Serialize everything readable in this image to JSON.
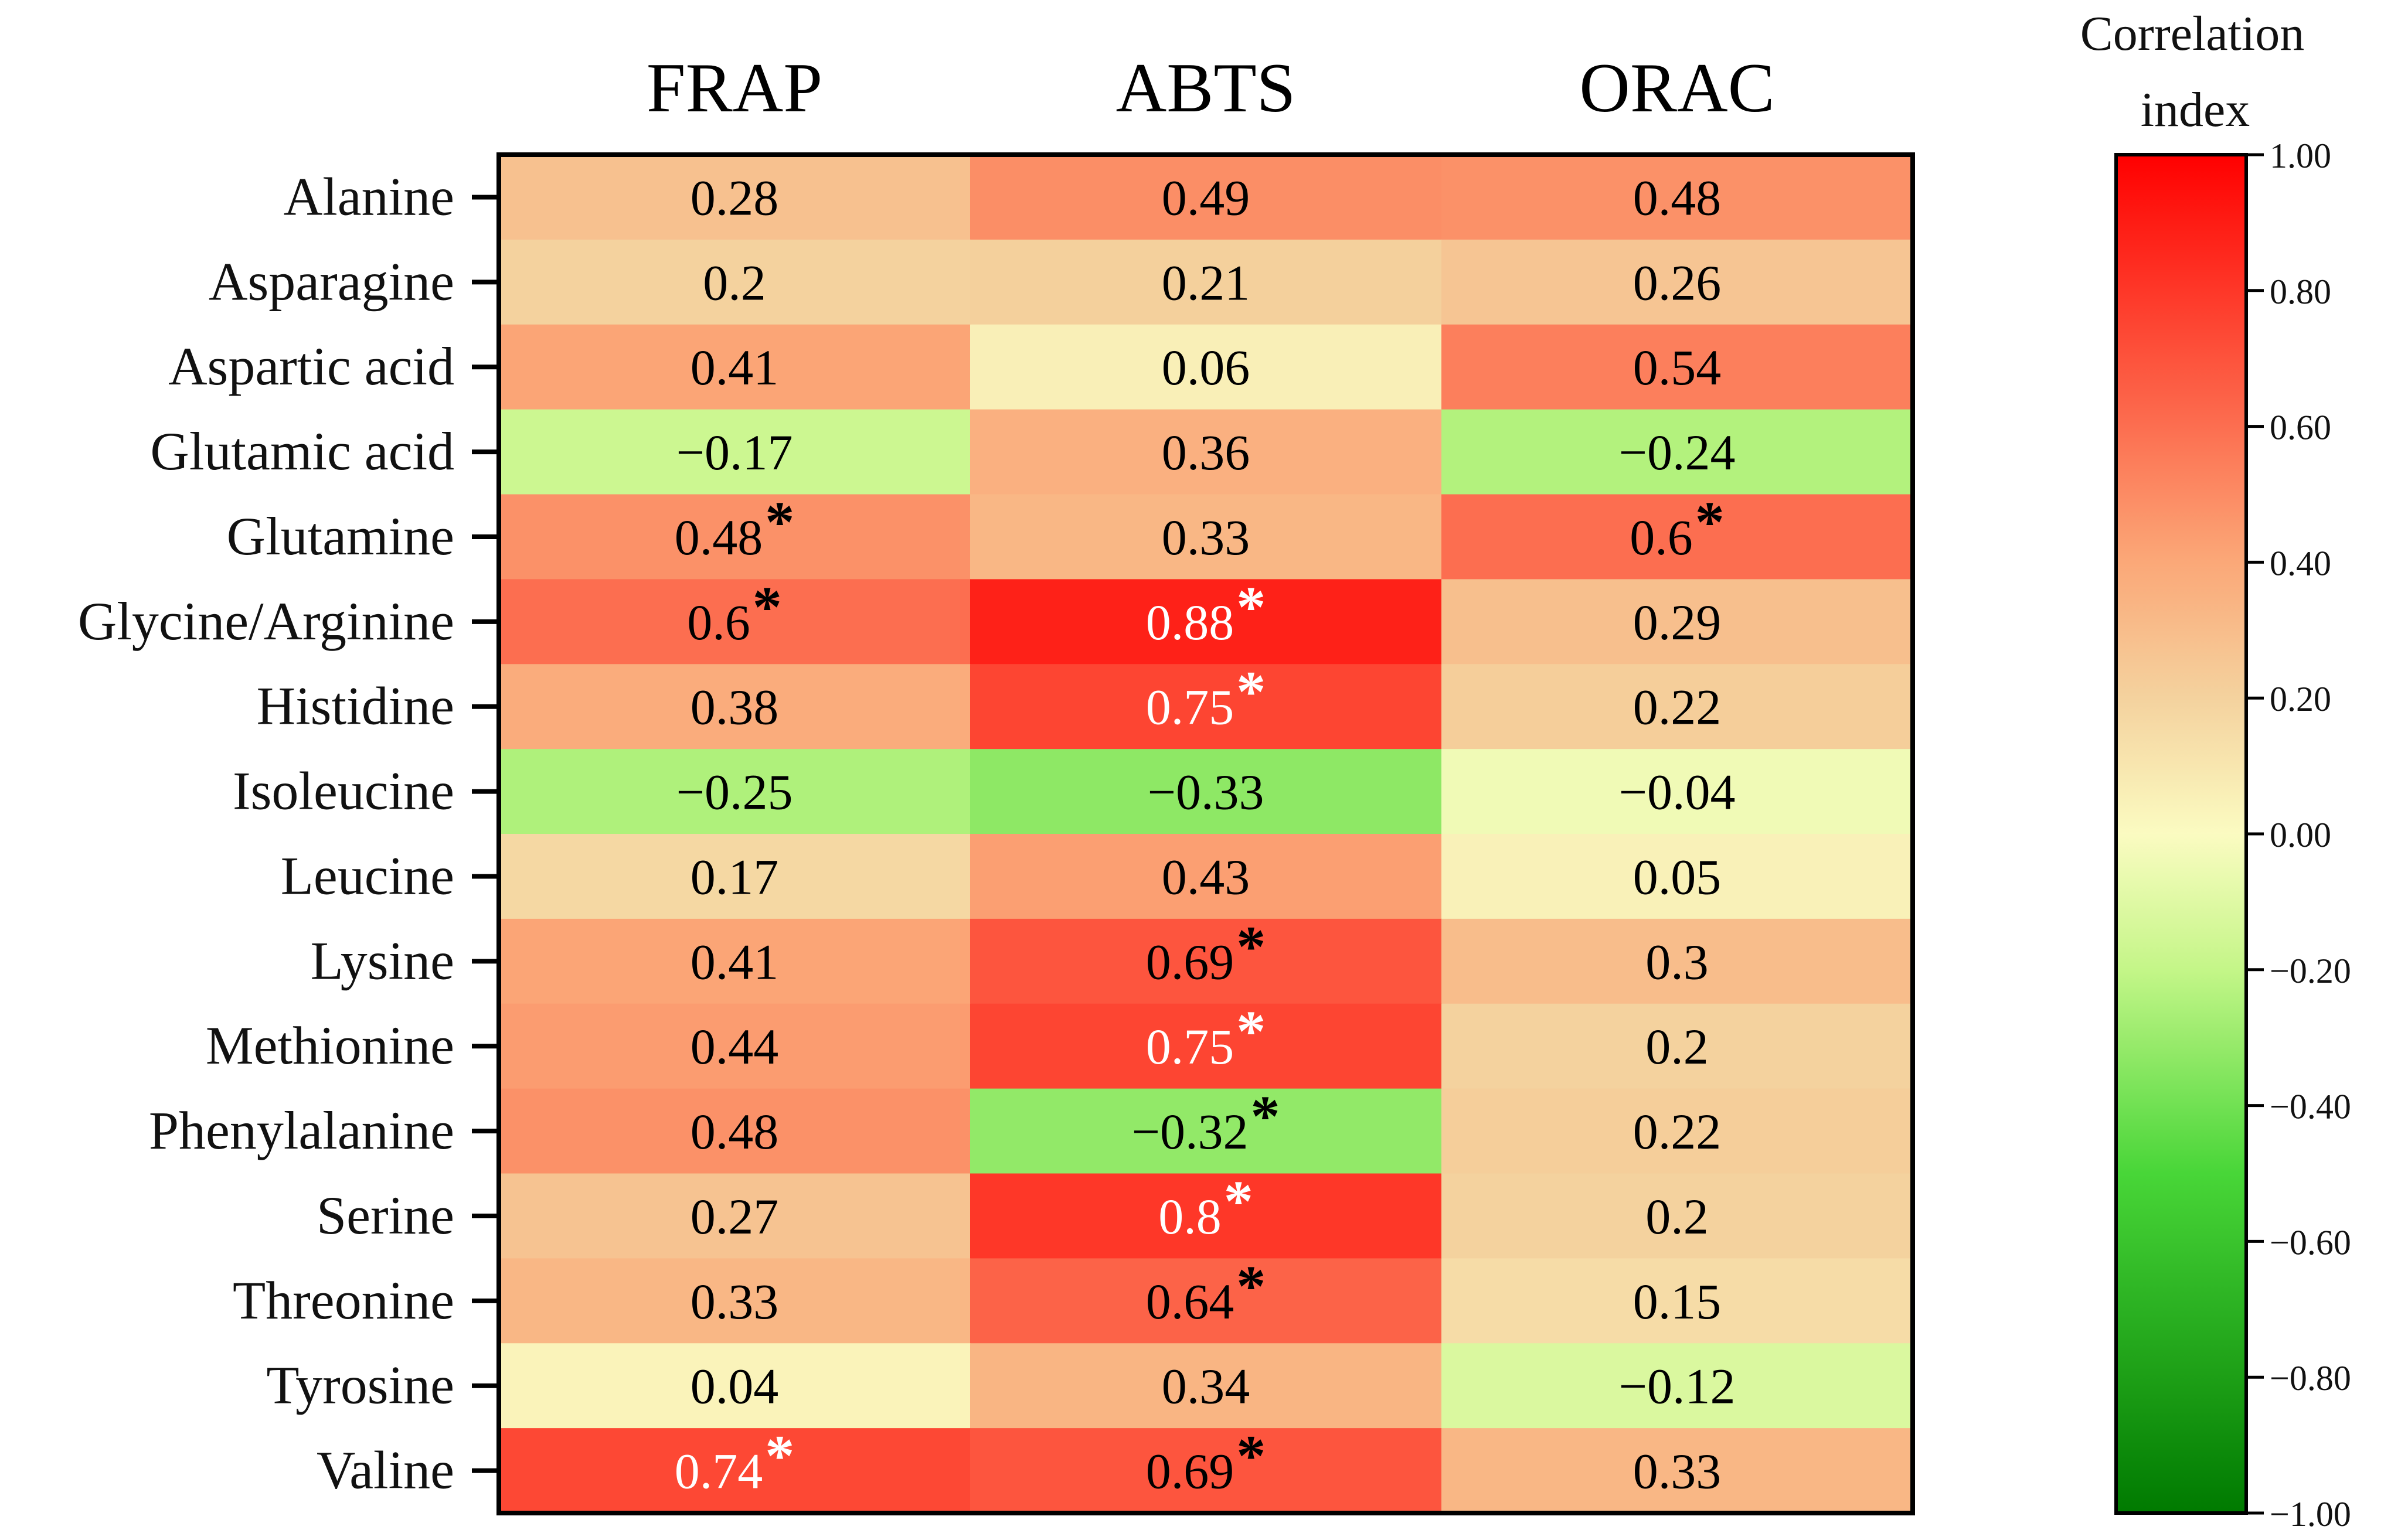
{
  "chart_data": {
    "type": "heatmap",
    "title": "",
    "columns": [
      "FRAP",
      "ABTS",
      "ORAC"
    ],
    "rows": [
      {
        "label": "Alanine",
        "values": [
          0.28,
          0.49,
          0.48
        ],
        "labels": [
          "0.28",
          "0.49",
          "0.48"
        ],
        "significant": [
          false,
          false,
          false
        ]
      },
      {
        "label": "Asparagine",
        "values": [
          0.2,
          0.21,
          0.26
        ],
        "labels": [
          "0.2",
          "0.21",
          "0.26"
        ],
        "significant": [
          false,
          false,
          false
        ]
      },
      {
        "label": "Aspartic acid",
        "values": [
          0.41,
          0.06,
          0.54
        ],
        "labels": [
          "0.41",
          "0.06",
          "0.54"
        ],
        "significant": [
          false,
          false,
          false
        ]
      },
      {
        "label": "Glutamic acid",
        "values": [
          -0.17,
          0.36,
          -0.24
        ],
        "labels": [
          "−0.17",
          "0.36",
          "−0.24"
        ],
        "significant": [
          false,
          false,
          false
        ]
      },
      {
        "label": "Glutamine",
        "values": [
          0.48,
          0.33,
          0.6
        ],
        "labels": [
          "0.48",
          "0.33",
          "0.6"
        ],
        "significant": [
          true,
          false,
          true
        ]
      },
      {
        "label": "Glycine/Arginine",
        "values": [
          0.6,
          0.88,
          0.29
        ],
        "labels": [
          "0.6",
          "0.88",
          "0.29"
        ],
        "significant": [
          true,
          true,
          false
        ]
      },
      {
        "label": "Histidine",
        "values": [
          0.38,
          0.75,
          0.22
        ],
        "labels": [
          "0.38",
          "0.75",
          "0.22"
        ],
        "significant": [
          false,
          true,
          false
        ]
      },
      {
        "label": "Isoleucine",
        "values": [
          -0.25,
          -0.33,
          -0.04
        ],
        "labels": [
          "−0.25",
          "−0.33",
          "−0.04"
        ],
        "significant": [
          false,
          false,
          false
        ]
      },
      {
        "label": "Leucine",
        "values": [
          0.17,
          0.43,
          0.05
        ],
        "labels": [
          "0.17",
          "0.43",
          "0.05"
        ],
        "significant": [
          false,
          false,
          false
        ]
      },
      {
        "label": "Lysine",
        "values": [
          0.41,
          0.69,
          0.3
        ],
        "labels": [
          "0.41",
          "0.69",
          "0.3"
        ],
        "significant": [
          false,
          true,
          false
        ]
      },
      {
        "label": "Methionine",
        "values": [
          0.44,
          0.75,
          0.2
        ],
        "labels": [
          "0.44",
          "0.75",
          "0.2"
        ],
        "significant": [
          false,
          true,
          false
        ]
      },
      {
        "label": "Phenylalanine",
        "values": [
          0.48,
          -0.32,
          0.22
        ],
        "labels": [
          "0.48",
          "−0.32",
          "0.22"
        ],
        "significant": [
          false,
          true,
          false
        ]
      },
      {
        "label": "Serine",
        "values": [
          0.27,
          0.8,
          0.2
        ],
        "labels": [
          "0.27",
          "0.8",
          "0.2"
        ],
        "significant": [
          false,
          true,
          false
        ]
      },
      {
        "label": "Threonine",
        "values": [
          0.33,
          0.64,
          0.15
        ],
        "labels": [
          "0.33",
          "0.64",
          "0.15"
        ],
        "significant": [
          false,
          true,
          false
        ]
      },
      {
        "label": "Tyrosine",
        "values": [
          0.04,
          0.34,
          -0.12
        ],
        "labels": [
          "0.04",
          "0.34",
          "−0.12"
        ],
        "significant": [
          false,
          false,
          false
        ]
      },
      {
        "label": "Valine",
        "values": [
          0.74,
          0.69,
          0.33
        ],
        "labels": [
          "0.74",
          "0.69",
          "0.33"
        ],
        "significant": [
          true,
          true,
          false
        ]
      }
    ],
    "significance_marker": "*",
    "colorbar": {
      "title_line1": "Correlation",
      "title_line2": "index",
      "range": [
        -1.0,
        1.0
      ],
      "tick_values": [
        1.0,
        0.8,
        0.6,
        0.4,
        0.2,
        0.0,
        -0.2,
        -0.4,
        -0.6,
        -0.8,
        -1.0
      ],
      "tick_labels": [
        "1.00",
        "0.80",
        "0.60",
        "0.40",
        "0.20",
        "0.00",
        "−0.20",
        "−0.40",
        "−0.60",
        "−0.80",
        "−1.00"
      ],
      "colors": {
        "low": "#007a00",
        "mid": "#fbfbc1",
        "high": "#ff0000"
      }
    }
  }
}
